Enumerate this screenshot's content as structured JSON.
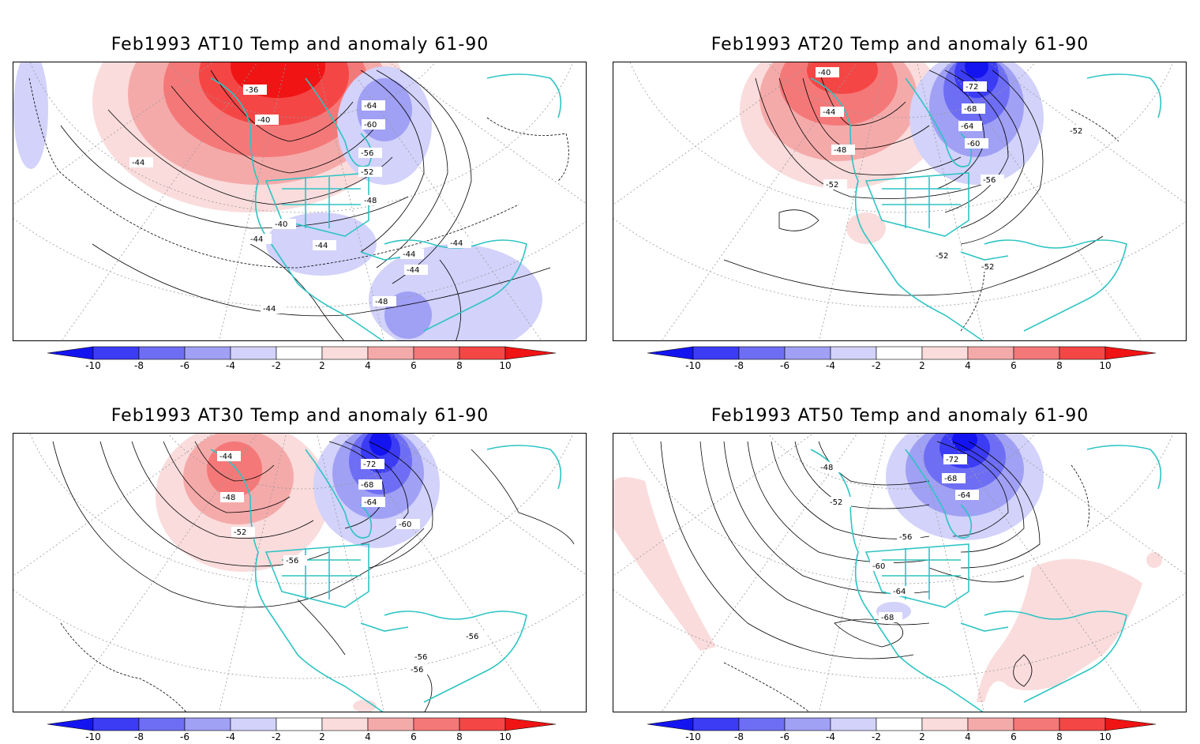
{
  "panels": [
    {
      "title": "Feb1993 AT10 Temp and anomaly 61-90",
      "contour_labels": [
        "-36",
        "-40",
        "-64",
        "-60",
        "-56",
        "-52",
        "-48",
        "-44",
        "-40",
        "-44",
        "-44",
        "-44",
        "-44",
        "-44",
        "-48",
        "-44"
      ]
    },
    {
      "title": "Feb1993 AT20 Temp and anomaly 61-90",
      "contour_labels": [
        "-40",
        "-44",
        "-48",
        "-52",
        "-72",
        "-68",
        "-64",
        "-60",
        "-56",
        "-52",
        "-52",
        "-52"
      ]
    },
    {
      "title": "Feb1993 AT30 Temp and anomaly 61-90",
      "contour_labels": [
        "-44",
        "-48",
        "-52",
        "-56",
        "-72",
        "-68",
        "-64",
        "-60",
        "-56",
        "-56",
        "-56"
      ]
    },
    {
      "title": "Feb1993 AT50 Temp and anomaly 61-90",
      "contour_labels": [
        "-48",
        "-52",
        "-56",
        "-60",
        "-64",
        "-68",
        "-72",
        "-68",
        "-64"
      ]
    }
  ],
  "colorbar": {
    "labels": [
      "-10",
      "-8",
      "-6",
      "-4",
      "-2",
      "2",
      "4",
      "6",
      "8",
      "10"
    ],
    "colors": [
      "#1414f0",
      "#3c3cf5",
      "#6e6ef5",
      "#a0a0f5",
      "#d2d2fa",
      "#ffffff",
      "#fadcdc",
      "#f5aaaa",
      "#f57878",
      "#f54646",
      "#f01414"
    ]
  },
  "colors": {
    "coastline": "#2ec4c4",
    "contour": "#000000",
    "grid": "#999999"
  }
}
